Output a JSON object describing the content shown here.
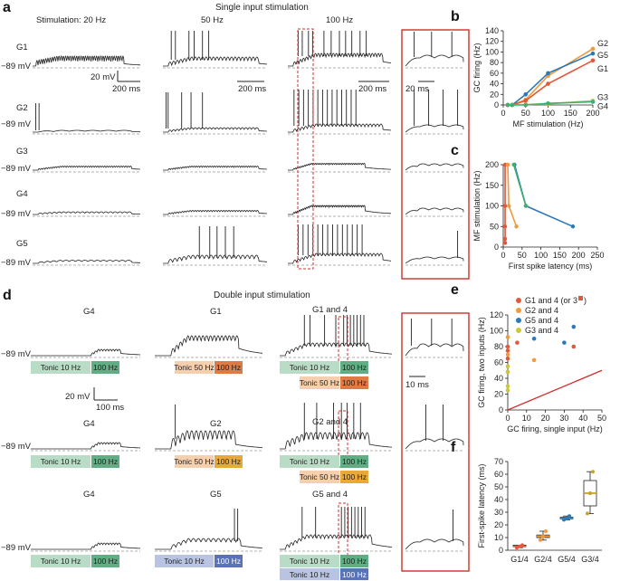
{
  "panels": {
    "a": "a",
    "b": "b",
    "c": "c",
    "d": "d",
    "e": "e",
    "f": "f"
  },
  "panel_a": {
    "title": "Single input stimulation",
    "freq_labels": [
      "Stimulation: 20 Hz",
      "50 Hz",
      "100 Hz"
    ],
    "rows": [
      "G1",
      "G2",
      "G3",
      "G4",
      "G5"
    ],
    "vm": "−89 mV",
    "scale_v": "20 mV",
    "scale_t1": "200 ms",
    "scale_t2": "200 ms",
    "scale_t3": "200 ms",
    "scale_zoom": "20 ms"
  },
  "panel_d": {
    "title": "Double input stimulation",
    "vm": "−89 mV",
    "rows": [
      {
        "left": "G4",
        "mid": "G1",
        "right": "G1 and 4"
      },
      {
        "left": "G4",
        "mid": "G2",
        "right": "G2 and 4"
      },
      {
        "left": "G4",
        "mid": "G5",
        "right": "G5 and 4"
      }
    ],
    "bars": {
      "tonic10": "Tonic 10 Hz",
      "hz100": "100 Hz",
      "tonic50": "Tonic 50 Hz",
      "hz100b": "100 Hz"
    },
    "scale_v": "20 mV",
    "scale_t": "100 ms",
    "scale_zoom": "10 ms",
    "colors": {
      "green": "#b9dcc6",
      "green_dark": "#5fae84",
      "orange": "#f6cfae",
      "orange_dark": "#e07a45",
      "yellow": "#f9d99a",
      "yellow_dark": "#e9a93a",
      "blue": "#b8c4e2",
      "blue_dark": "#5a73b8"
    }
  },
  "chart_data": [
    {
      "panel": "b",
      "type": "line",
      "xlabel": "MF stimulation (Hz)",
      "ylabel": "GC firing (Hz)",
      "xlim": [
        0,
        200
      ],
      "ylim": [
        0,
        140
      ],
      "xticks": [
        0,
        50,
        100,
        150,
        200
      ],
      "yticks": [
        0,
        20,
        40,
        60,
        80,
        100,
        120,
        140
      ],
      "x": [
        10,
        20,
        50,
        100,
        200
      ],
      "series": [
        {
          "name": "G2",
          "color": "#ef9a3c",
          "values": [
            0,
            0,
            10,
            55,
            106
          ]
        },
        {
          "name": "G5",
          "color": "#2b79b9",
          "values": [
            0,
            0,
            20,
            60,
            97
          ]
        },
        {
          "name": "G1",
          "color": "#e2583a",
          "values": [
            0,
            0,
            8,
            40,
            84
          ]
        },
        {
          "name": "G3",
          "color": "#c9c93a",
          "values": [
            0,
            0,
            1,
            2,
            8
          ]
        },
        {
          "name": "G4",
          "color": "#3fae72",
          "values": [
            0,
            0,
            0,
            3,
            6
          ]
        }
      ]
    },
    {
      "panel": "c",
      "type": "line",
      "xlabel": "First spike latency (ms)",
      "ylabel": "MF stimulation (Hz)",
      "xlim": [
        0,
        250
      ],
      "ylim": [
        0,
        200
      ],
      "xticks": [
        0,
        50,
        100,
        150,
        200,
        250
      ],
      "yticks": [
        0,
        50,
        100,
        150,
        200
      ],
      "series": [
        {
          "name": "G1",
          "color": "#e2583a",
          "x": [
            5,
            5,
            5,
            5,
            5
          ],
          "y": [
            10,
            20,
            50,
            100,
            200
          ]
        },
        {
          "name": "G2",
          "color": "#ef9a3c",
          "x": [
            35,
            15,
            12,
            12
          ],
          "y": [
            50,
            100,
            200,
            200
          ]
        },
        {
          "name": "G5",
          "color": "#2b79b9",
          "x": [
            185,
            60,
            30
          ],
          "y": [
            50,
            100,
            200
          ]
        },
        {
          "name": "G4",
          "color": "#3fae72",
          "x": [
            60,
            28
          ],
          "y": [
            100,
            200
          ]
        }
      ]
    },
    {
      "panel": "e",
      "type": "scatter",
      "xlabel": "GC firing, single input (Hz)",
      "ylabel": "GC firing, two inputs (Hz)",
      "xlim": [
        0,
        50
      ],
      "ylim": [
        0,
        120
      ],
      "xticks": [
        0,
        10,
        20,
        30,
        40,
        50
      ],
      "yticks": [
        0,
        20,
        40,
        60,
        80,
        100,
        120
      ],
      "legend": [
        "G1 and 4 (or 3",
        "G2 and 4",
        "G5 and 4",
        "G3 and 4"
      ],
      "legend_suffix": ")",
      "series": [
        {
          "name": "G1 and 4",
          "color": "#e2583a",
          "x": [
            0,
            0,
            0,
            5,
            35
          ],
          "y": [
            80,
            75,
            65,
            85,
            80
          ]
        },
        {
          "name": "G2 and 4",
          "color": "#ef9a3c",
          "x": [
            0,
            0,
            14
          ],
          "y": [
            92,
            70,
            63
          ]
        },
        {
          "name": "G5 and 4",
          "color": "#2b79b9",
          "x": [
            14,
            30,
            35
          ],
          "y": [
            90,
            85,
            105
          ]
        },
        {
          "name": "G3 and 4",
          "color": "#c9c93a",
          "x": [
            0,
            0,
            0,
            0
          ],
          "y": [
            55,
            48,
            30,
            25
          ]
        }
      ]
    },
    {
      "panel": "f",
      "type": "box",
      "ylabel": "First-spike latency (ms)",
      "ylim": [
        0,
        70
      ],
      "yticks": [
        0,
        10,
        20,
        30,
        40,
        50,
        60,
        70
      ],
      "categories": [
        "G1/4",
        "G2/4",
        "G5/4",
        "G3/4"
      ],
      "colors": [
        "#e2583a",
        "#ef9a3c",
        "#2b79b9",
        "#c9a030"
      ],
      "boxes": [
        {
          "min": 2,
          "q1": 3,
          "median": 3,
          "q3": 4,
          "max": 4
        },
        {
          "min": 8,
          "q1": 10,
          "median": 11,
          "q3": 12,
          "max": 15
        },
        {
          "min": 24,
          "q1": 25,
          "median": 25,
          "q3": 26,
          "max": 27
        },
        {
          "min": 29,
          "q1": 35,
          "median": 45,
          "q3": 55,
          "max": 62
        }
      ]
    }
  ]
}
